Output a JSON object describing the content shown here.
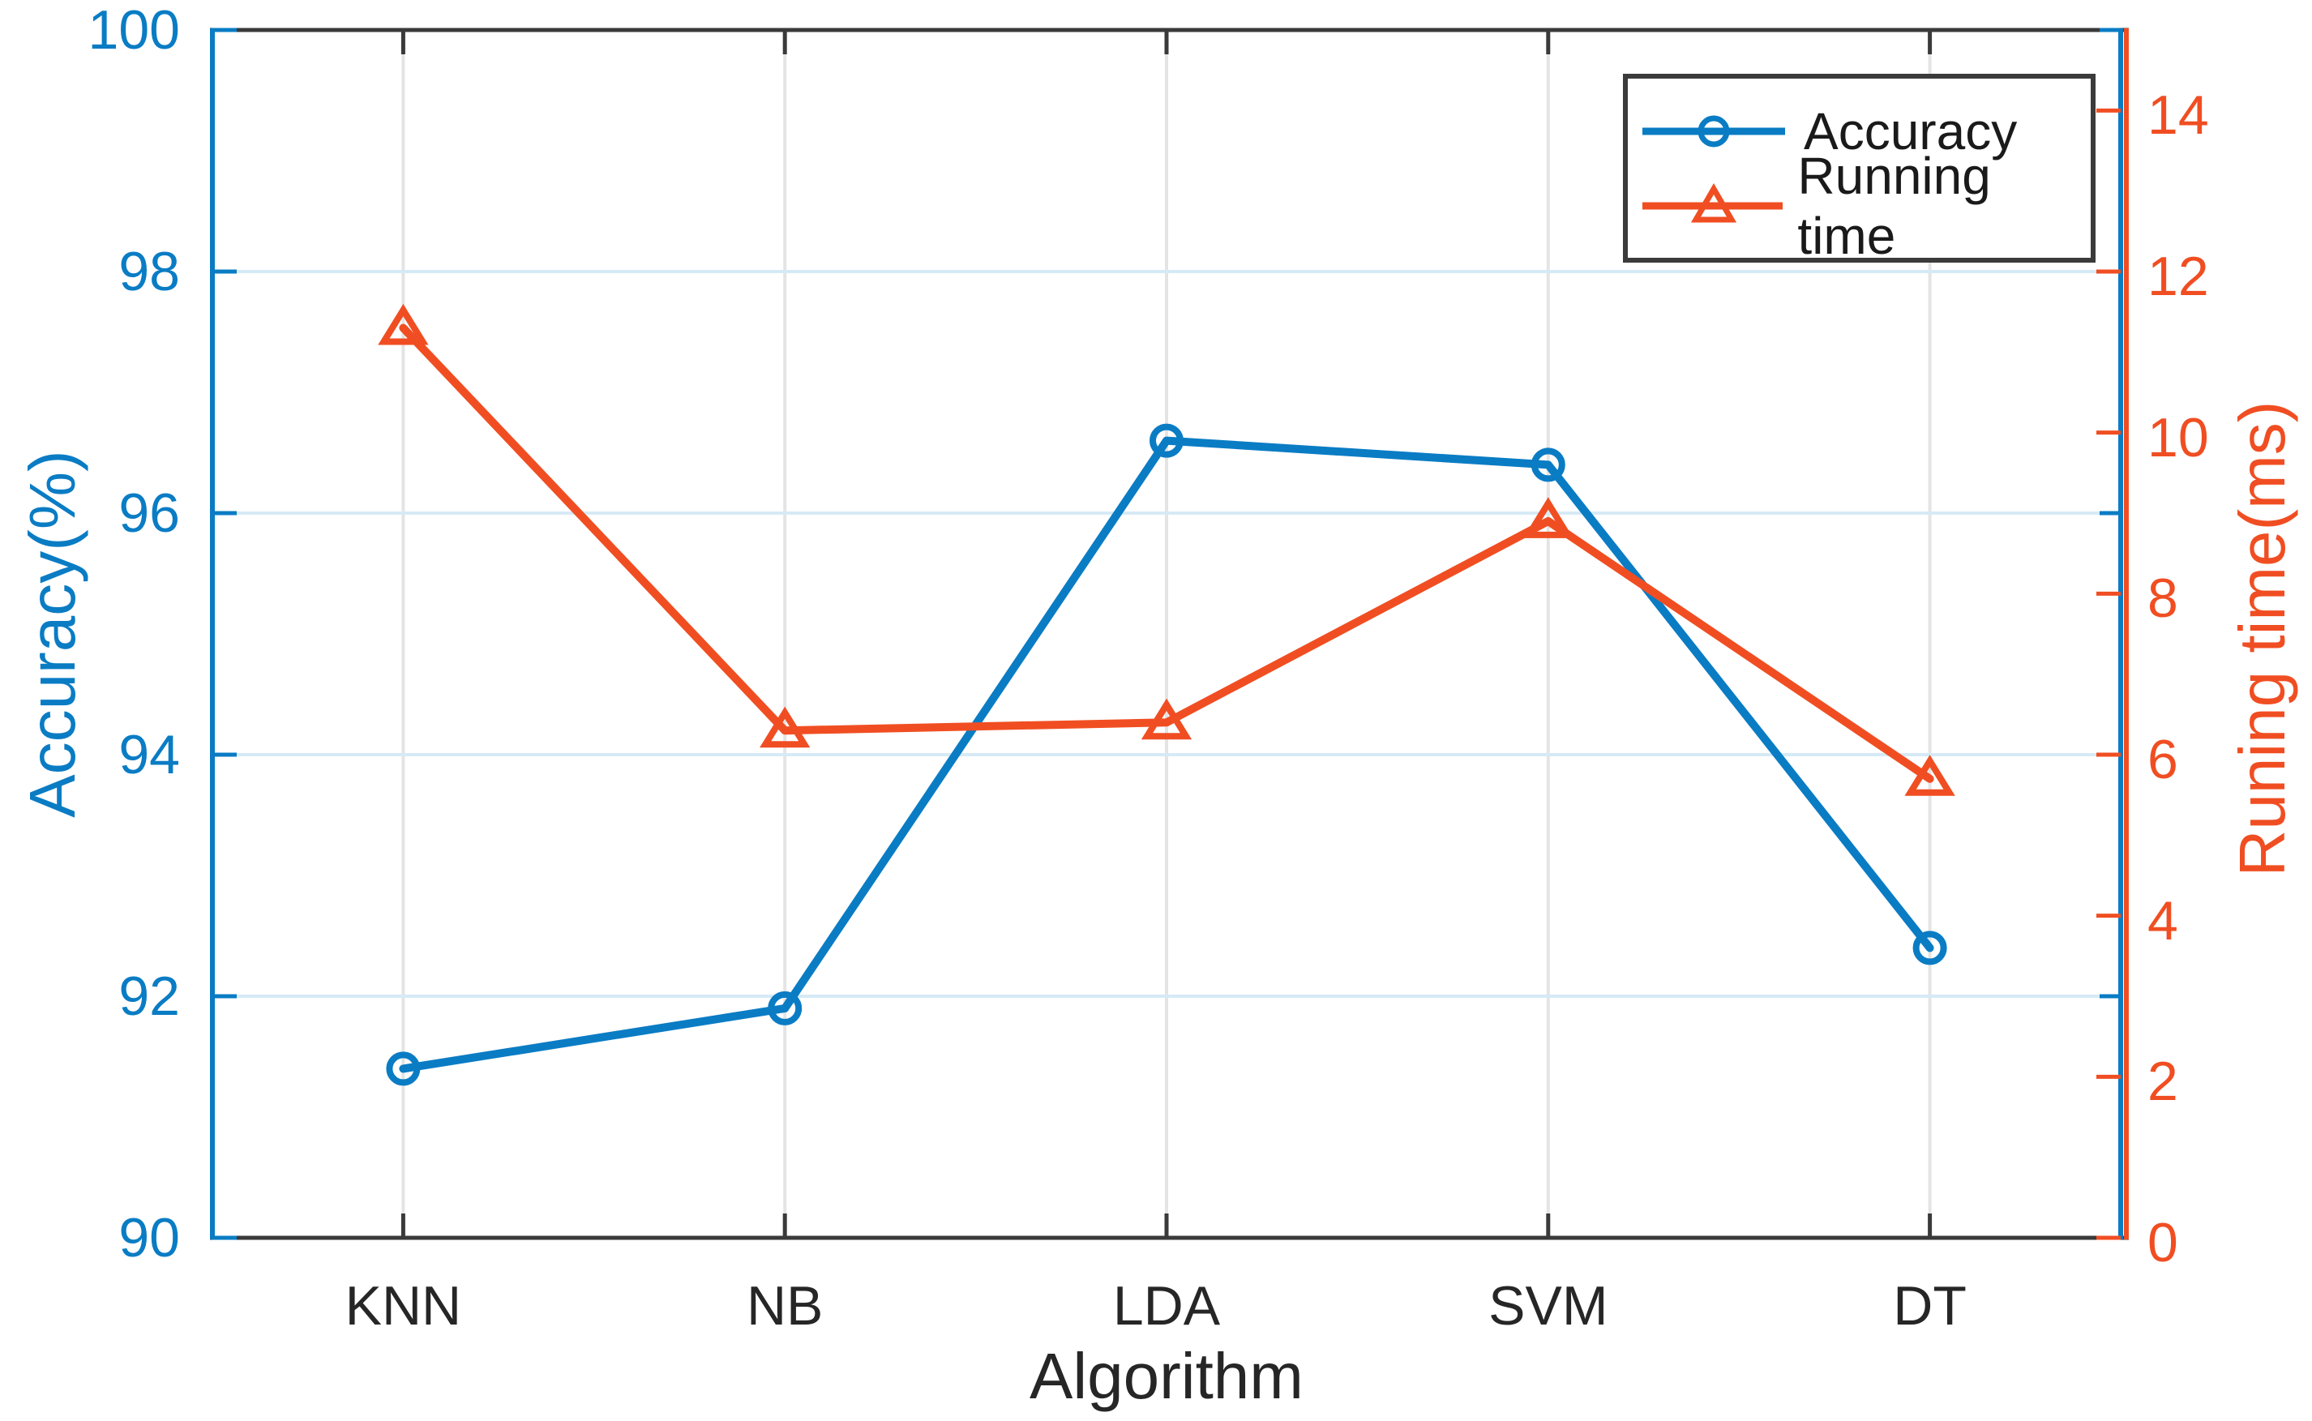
{
  "figure": {
    "background": "#FFFFFF"
  },
  "colors": {
    "accuracy_blue": "#0A7CC4",
    "running_orange": "#F04E22",
    "grid_horizontal": "#D6EAF6",
    "grid_vertical": "#E4E4E4",
    "axis_dark": "#3A3A3A",
    "text_dark": "#262626",
    "background": "#FFFFFF"
  },
  "chart_data": {
    "type": "line",
    "categories": [
      "KNN",
      "NB",
      "LDA",
      "SVM",
      "DT"
    ],
    "series": [
      {
        "name": "Accuracy",
        "axis": "left",
        "marker": "circle",
        "color": "#0A7CC4",
        "values": [
          91.4,
          91.9,
          96.6,
          96.4,
          92.4
        ]
      },
      {
        "name": "Running time",
        "axis": "right",
        "marker": "triangle",
        "color": "#F04E22",
        "values": [
          11.3,
          6.3,
          6.4,
          8.9,
          5.7
        ]
      }
    ],
    "xlabel": "Algorithm",
    "ylabel_left": "Accuracy(%)",
    "ylim_left": [
      90,
      100
    ],
    "yticks_left": [
      90,
      92,
      94,
      96,
      98,
      100
    ],
    "ylabel_right": "Runing time(ms)",
    "ylim_right": [
      0,
      15
    ],
    "yticks_right": [
      0,
      2,
      4,
      6,
      8,
      10,
      12,
      14
    ],
    "grid": true,
    "legend": {
      "position": "top-right",
      "entries": [
        "Accuracy",
        "Running time"
      ]
    }
  }
}
